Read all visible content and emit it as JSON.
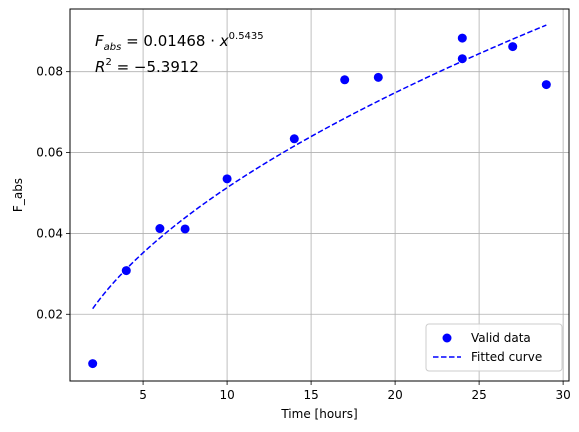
{
  "chart_data": {
    "type": "scatter",
    "xlabel": "Time [hours]",
    "ylabel": "F_abs",
    "xlim": [
      0.65,
      30.35
    ],
    "ylim": [
      0.0035,
      0.0955
    ],
    "xticks": [
      5,
      10,
      15,
      20,
      25,
      30
    ],
    "yticks": [
      0.02,
      0.04,
      0.06,
      0.08
    ],
    "xtick_labels": [
      "5",
      "10",
      "15",
      "20",
      "25",
      "30"
    ],
    "ytick_labels": [
      "0.02",
      "0.04",
      "0.06",
      "0.08"
    ],
    "grid": true,
    "legend_position": "lower right",
    "series": [
      {
        "name": "Valid data",
        "kind": "points",
        "color": "#0000ff",
        "x": [
          2,
          4,
          6,
          7.5,
          10,
          14,
          17,
          19,
          24,
          24,
          27,
          29
        ],
        "y": [
          0.0078,
          0.0308,
          0.0412,
          0.0411,
          0.0535,
          0.0634,
          0.078,
          0.0786,
          0.0883,
          0.0832,
          0.0862,
          0.0768
        ]
      },
      {
        "name": "Fitted curve",
        "kind": "dashed-line",
        "color": "#0000ff",
        "equation": {
          "coef": "0.01468",
          "exponent": "0.5435"
        },
        "x_range": [
          2,
          29
        ]
      }
    ],
    "annotations": {
      "equation": {
        "lhs": "F",
        "sub": "abs",
        "rhs": " = 0.01468 · ",
        "var": "x",
        "sup": "0.5435"
      },
      "r2": {
        "lhs": "R",
        "sup": "2",
        "rhs": " = −5.3912"
      }
    }
  }
}
